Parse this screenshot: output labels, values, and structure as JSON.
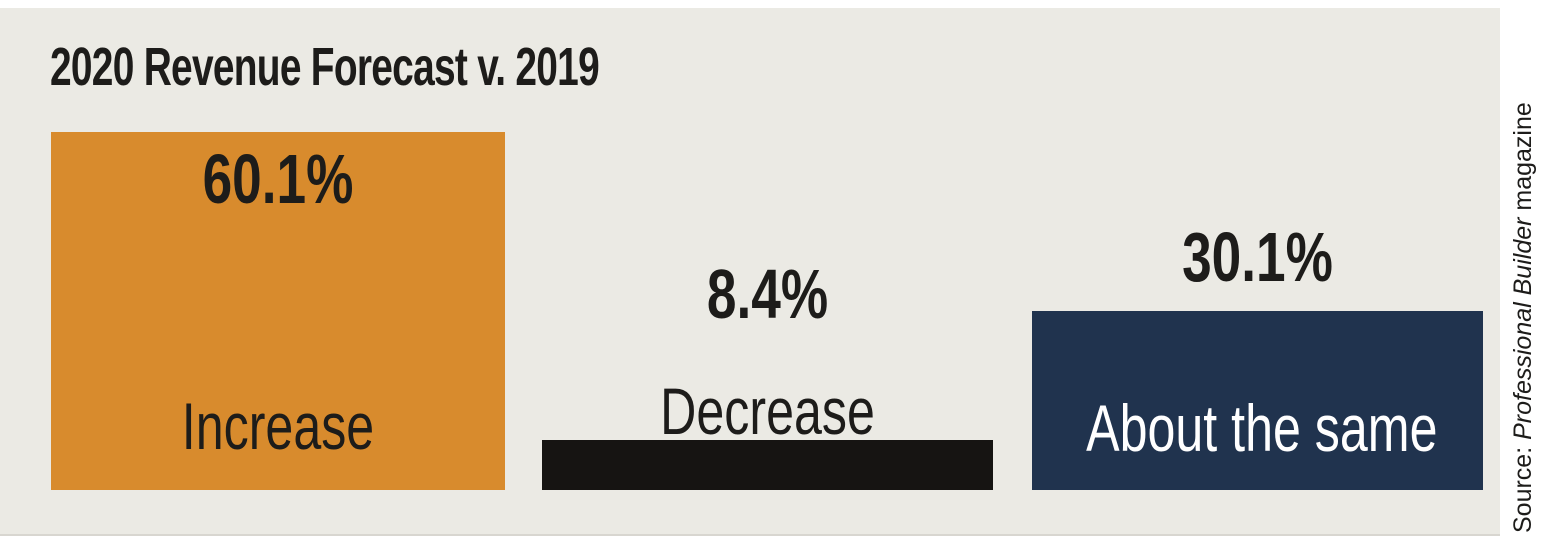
{
  "page": {
    "background": "#ffffff"
  },
  "panel": {
    "background": "#ebeae4"
  },
  "title": "2020 Revenue Forecast v. 2019",
  "source": {
    "prefix": "Source: ",
    "publication": "Professional Builder",
    "suffix": " magazine"
  },
  "colors": {
    "title_text": "#1d1c1a",
    "value_text": "#1d1c1a",
    "source_text": "#1d1c1a",
    "bar_increase": "#d88b2d",
    "bar_decrease": "#161412",
    "bar_about_same": "#20334e"
  },
  "chart_data": {
    "type": "bar",
    "title": "2020 Revenue Forecast v. 2019",
    "categories": [
      "Increase",
      "Decrease",
      "About the same"
    ],
    "values": [
      60.1,
      8.4,
      30.1
    ],
    "value_labels": [
      "60.1%",
      "8.4%",
      "30.1%"
    ],
    "unit": "%",
    "ylim": [
      0,
      65
    ],
    "grid": false,
    "legend": "none",
    "axes_shown": false,
    "bars": [
      {
        "category": "Increase",
        "value": 60.1,
        "value_label": "60.1%",
        "color": "#d88b2d",
        "label_color": "#1d1c1a",
        "value_placement": "inside-top",
        "category_placement": "inside-bottom"
      },
      {
        "category": "Decrease",
        "value": 8.4,
        "value_label": "8.4%",
        "color": "#161412",
        "label_color": "#1d1c1a",
        "value_placement": "above",
        "category_placement": "above"
      },
      {
        "category": "About the same",
        "value": 30.1,
        "value_label": "30.1%",
        "color": "#20334e",
        "label_color": "#ffffff",
        "value_placement": "above",
        "category_placement": "inside"
      }
    ]
  }
}
